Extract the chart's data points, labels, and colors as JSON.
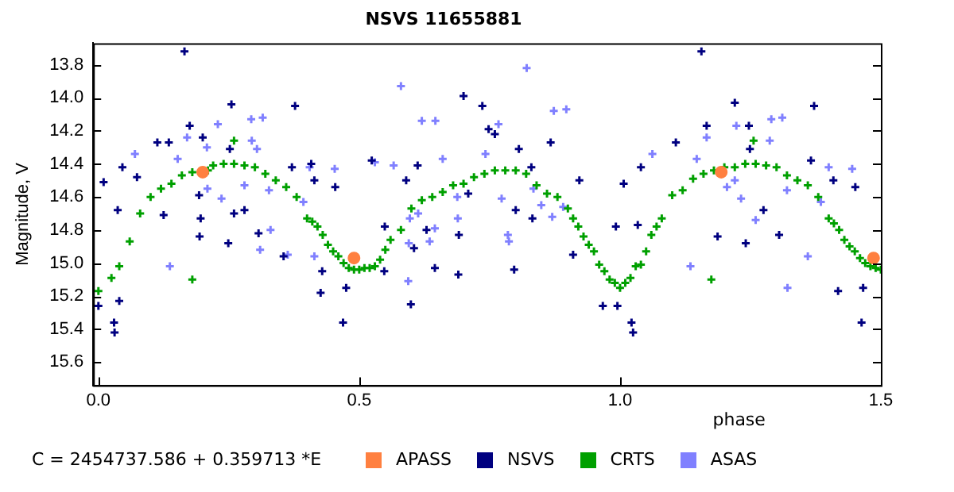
{
  "chart_data": {
    "type": "scatter",
    "title": "NSVS 11655881",
    "ylabel": "Magnitude, V",
    "xlabel": "phase",
    "annotations": [
      "C = 2454737.586 + 0.359713 *E"
    ],
    "xlim": [
      -0.01,
      1.5
    ],
    "xticks": [
      {
        "value": 0,
        "label": "0.0"
      },
      0.5,
      {
        "value": 1,
        "label": "1.0"
      },
      1.5
    ],
    "ylim": [
      15.74,
      13.67
    ],
    "yticks": [
      13.8,
      {
        "value": 14,
        "label": "14.0"
      },
      14.2,
      14.4,
      14.6,
      14.8,
      {
        "value": 15,
        "label": "15.0"
      },
      15.2,
      15.4,
      15.6
    ],
    "grid": false,
    "legend": "bottom",
    "marker": "cross",
    "series": [
      {
        "name": "APASS",
        "color": "#ff8040",
        "marker": "circle",
        "x": [
          0.2,
          0.49,
          1.194,
          1.486
        ],
        "values": [
          14.45,
          14.97,
          14.45,
          14.97
        ]
      },
      {
        "name": "NSVS",
        "color": "#000080",
        "x": [
          0.165,
          0.0,
          0.03,
          0.031,
          0.04,
          0.01,
          0.037,
          0.046,
          0.074,
          0.113,
          0.125,
          0.135,
          0.175,
          0.193,
          0.194,
          0.196,
          0.2,
          0.255,
          0.249,
          0.26,
          0.28,
          0.307,
          0.377,
          0.355,
          0.371,
          0.408,
          0.426,
          0.414,
          0.429,
          0.454,
          0.469,
          0.475,
          0.548,
          0.524,
          0.549,
          0.612,
          0.59,
          0.599,
          0.605,
          0.629,
          0.645,
          0.69,
          0.691,
          0.7,
          0.709,
          0.252,
          0.736,
          0.748,
          0.76,
          0.806,
          0.83,
          0.867,
          0.797,
          0.8,
          0.832,
          0.91,
          0.922,
          0.967,
          0.995,
          0.992,
          1.007,
          1.022,
          1.025,
          1.034,
          1.04,
          1.107,
          1.156,
          1.166,
          1.187,
          1.22,
          1.247,
          1.241,
          1.275,
          1.305,
          1.372,
          1.366,
          1.409,
          1.418,
          1.451,
          1.463,
          1.466,
          1.249
        ],
        "values": [
          13.72,
          15.26,
          15.36,
          15.42,
          15.23,
          14.51,
          14.68,
          14.42,
          14.48,
          14.27,
          14.71,
          14.27,
          14.17,
          14.59,
          14.84,
          14.73,
          14.24,
          14.04,
          14.88,
          14.7,
          14.68,
          14.82,
          14.05,
          14.96,
          14.42,
          14.4,
          15.18,
          14.5,
          15.05,
          14.54,
          15.36,
          15.15,
          15.05,
          14.38,
          14.78,
          14.41,
          14.5,
          15.25,
          14.91,
          14.8,
          15.03,
          15.07,
          14.83,
          13.99,
          14.58,
          14.31,
          14.05,
          14.19,
          14.22,
          14.31,
          14.42,
          14.27,
          15.04,
          14.68,
          14.73,
          14.95,
          14.5,
          15.26,
          15.26,
          14.78,
          14.52,
          15.36,
          15.42,
          14.77,
          14.42,
          14.27,
          13.72,
          14.17,
          14.84,
          14.03,
          14.17,
          14.88,
          14.68,
          14.83,
          14.05,
          14.38,
          14.5,
          15.17,
          14.54,
          15.36,
          15.15,
          14.31
        ]
      },
      {
        "name": "CRTS",
        "color": "#00a000",
        "x": [
          0.0,
          0.025,
          0.04,
          0.06,
          0.08,
          0.1,
          0.12,
          0.14,
          0.16,
          0.18,
          0.21,
          0.22,
          0.24,
          0.26,
          0.28,
          0.3,
          0.32,
          0.34,
          0.36,
          0.38,
          0.4,
          0.41,
          0.42,
          0.43,
          0.44,
          0.45,
          0.46,
          0.47,
          0.48,
          0.49,
          0.5,
          0.51,
          0.52,
          0.53,
          0.54,
          0.55,
          0.56,
          0.58,
          0.6,
          0.62,
          0.64,
          0.66,
          0.68,
          0.7,
          0.72,
          0.74,
          0.76,
          0.78,
          0.8,
          0.82,
          0.84,
          0.86,
          0.88,
          0.9,
          0.91,
          0.92,
          0.93,
          0.94,
          0.95,
          0.96,
          0.97,
          0.98,
          0.99,
          1.0,
          1.01,
          1.02,
          1.03,
          1.04,
          1.05,
          1.06,
          1.07,
          1.08,
          1.1,
          1.12,
          1.14,
          1.16,
          1.18,
          1.2,
          1.22,
          1.24,
          1.26,
          1.28,
          1.3,
          1.32,
          1.34,
          1.36,
          1.38,
          1.4,
          1.41,
          1.42,
          1.43,
          1.44,
          1.45,
          1.46,
          1.47,
          1.48,
          1.49,
          1.5,
          0.18,
          0.26,
          1.175,
          1.256
        ],
        "values": [
          15.17,
          15.09,
          15.02,
          14.87,
          14.7,
          14.6,
          14.55,
          14.52,
          14.47,
          14.45,
          14.44,
          14.41,
          14.4,
          14.4,
          14.41,
          14.42,
          14.46,
          14.5,
          14.54,
          14.6,
          14.73,
          14.75,
          14.78,
          14.83,
          14.89,
          14.93,
          14.96,
          15.0,
          15.03,
          15.04,
          15.04,
          15.03,
          15.03,
          15.02,
          14.98,
          14.92,
          14.86,
          14.8,
          14.67,
          14.62,
          14.6,
          14.57,
          14.53,
          14.52,
          14.48,
          14.46,
          14.44,
          14.44,
          14.44,
          14.46,
          14.53,
          14.58,
          14.6,
          14.67,
          14.73,
          14.78,
          14.84,
          14.89,
          14.93,
          15.01,
          15.05,
          15.1,
          15.12,
          15.15,
          15.12,
          15.09,
          15.02,
          15.01,
          14.93,
          14.83,
          14.78,
          14.73,
          14.59,
          14.56,
          14.49,
          14.46,
          14.44,
          14.42,
          14.42,
          14.4,
          14.4,
          14.41,
          14.42,
          14.47,
          14.5,
          14.53,
          14.6,
          14.73,
          14.76,
          14.8,
          14.86,
          14.9,
          14.93,
          14.97,
          15.0,
          15.02,
          15.03,
          15.04,
          15.1,
          14.26,
          15.1,
          14.26
        ]
      },
      {
        "name": "ASAS",
        "color": "#8080ff",
        "x": [
          0.07,
          0.17,
          0.152,
          0.208,
          0.209,
          0.229,
          0.236,
          0.293,
          0.294,
          0.315,
          0.304,
          0.327,
          0.137,
          0.28,
          0.31,
          0.33,
          0.363,
          0.393,
          0.405,
          0.414,
          0.453,
          0.53,
          0.566,
          0.58,
          0.594,
          0.595,
          0.597,
          0.613,
          0.62,
          0.635,
          0.645,
          0.646,
          0.66,
          0.688,
          0.689,
          0.821,
          0.873,
          0.897,
          0.767,
          0.742,
          0.773,
          0.785,
          0.787,
          0.834,
          0.849,
          0.87,
          0.891,
          1.062,
          1.135,
          1.147,
          1.166,
          1.205,
          1.223,
          1.22,
          1.232,
          1.287,
          1.29,
          1.311,
          1.32,
          1.26,
          1.321,
          1.36,
          1.4,
          1.445,
          1.385
        ],
        "values": [
          14.34,
          14.24,
          14.37,
          14.3,
          14.55,
          14.16,
          14.61,
          14.13,
          14.26,
          14.12,
          14.31,
          14.56,
          15.02,
          14.53,
          14.92,
          14.8,
          14.95,
          14.63,
          14.42,
          14.96,
          14.43,
          14.39,
          14.41,
          13.93,
          15.11,
          14.88,
          14.73,
          14.7,
          14.14,
          14.87,
          14.79,
          14.14,
          14.37,
          14.6,
          14.73,
          13.82,
          14.08,
          14.07,
          14.16,
          14.34,
          14.61,
          14.83,
          14.87,
          14.55,
          14.65,
          14.72,
          14.66,
          14.34,
          15.02,
          14.37,
          14.24,
          14.54,
          14.17,
          14.5,
          14.61,
          14.26,
          14.13,
          14.12,
          14.56,
          14.74,
          15.15,
          14.96,
          14.42,
          14.43,
          14.63
        ]
      }
    ]
  }
}
